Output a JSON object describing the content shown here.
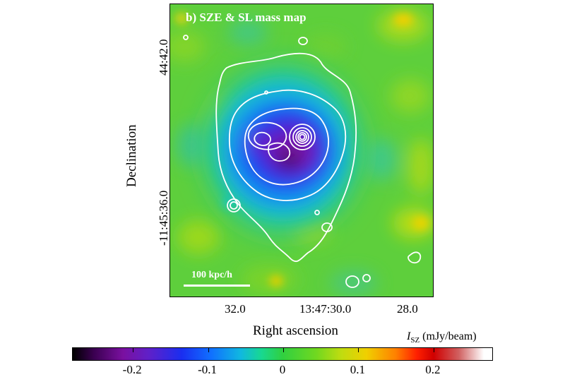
{
  "chart_data": {
    "type": "heatmap",
    "title": "b) SZE & SL mass map",
    "xlabel": "Right ascension",
    "ylabel": "Declination",
    "x_ticks": [
      "32.0",
      "13:47:30.0",
      "28.0"
    ],
    "y_ticks": [
      "44:42.0",
      "-11:45:36.0"
    ],
    "scalebar_label": "100 kpc/h",
    "colorbar": {
      "label_symbol": "I",
      "label_subscript": "SZ",
      "label_unit": " (mJy/beam)",
      "ticks": [
        "-0.2",
        "-0.1",
        "0",
        "0.1",
        "0.2"
      ],
      "tick_values": [
        -0.2,
        -0.1,
        0,
        0.1,
        0.2
      ],
      "range": [
        -0.28,
        0.28
      ],
      "colormap": [
        "#000000",
        "#7a10a0",
        "#1a2ef0",
        "#10b8e0",
        "#30d040",
        "#c0dc10",
        "#f0d000",
        "#ff2000",
        "#d00000",
        "#ffffff"
      ]
    },
    "contour_color": "#ffffff",
    "background_color": "#5ecf3c"
  }
}
